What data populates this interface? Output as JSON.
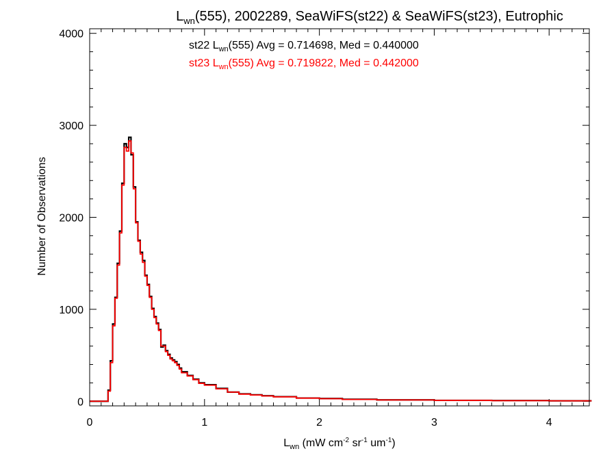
{
  "chart_data": {
    "type": "line",
    "title": {
      "prefix": "L",
      "sub": "wn",
      "suffix": "(555), 2002289, SeaWiFS(st22) & SeaWiFS(st23), Eutrophic"
    },
    "ylabel": "Number of Observations",
    "xlabel": {
      "main": "L",
      "sub": "wn",
      "units": [
        {
          "t": " (mW cm",
          "sup": false
        },
        {
          "t": "-2",
          "sup": true
        },
        {
          "t": " sr",
          "sup": false
        },
        {
          "t": "-1",
          "sup": true
        },
        {
          "t": " um",
          "sup": false
        },
        {
          "t": "-1",
          "sup": true
        },
        {
          "t": ")",
          "sup": false
        }
      ]
    },
    "xlim": [
      0,
      4.35
    ],
    "ylim": [
      -50,
      4050
    ],
    "xticks": [
      0,
      1,
      2,
      3,
      4
    ],
    "xtick_labels": [
      "0",
      "1",
      "2",
      "3",
      "4"
    ],
    "yticks": [
      0,
      1000,
      2000,
      3000,
      4000
    ],
    "ytick_labels": [
      "0",
      "1000",
      "2000",
      "3000",
      "4000"
    ],
    "grid": false,
    "legend": [
      {
        "prefix": "st22 L",
        "sub": "wn",
        "suffix": "(555) Avg = 0.714698, Med = 0.440000",
        "color": "#000000"
      },
      {
        "prefix": "st23 L",
        "sub": "wn",
        "suffix": "(555) Avg = 0.719822, Med = 0.442000",
        "color": "#ff0000"
      }
    ],
    "bin_width": 0.02,
    "series": [
      {
        "color": "#000000",
        "x": [
          0.0,
          0.16,
          0.18,
          0.2,
          0.22,
          0.24,
          0.26,
          0.28,
          0.3,
          0.32,
          0.34,
          0.36,
          0.38,
          0.4,
          0.42,
          0.44,
          0.46,
          0.48,
          0.5,
          0.52,
          0.54,
          0.56,
          0.58,
          0.6,
          0.62,
          0.64,
          0.66,
          0.68,
          0.7,
          0.72,
          0.74,
          0.76,
          0.78,
          0.8,
          0.85,
          0.9,
          0.95,
          1.0,
          1.1,
          1.2,
          1.3,
          1.4,
          1.5,
          1.6,
          1.8,
          2.0,
          2.2,
          2.5,
          3.0,
          3.5,
          4.0,
          4.35
        ],
        "y": [
          0,
          120,
          440,
          840,
          1130,
          1500,
          1850,
          2370,
          2800,
          2760,
          2870,
          2680,
          2330,
          1950,
          1750,
          1620,
          1530,
          1370,
          1270,
          1140,
          1010,
          920,
          850,
          780,
          590,
          610,
          550,
          510,
          470,
          450,
          430,
          400,
          360,
          320,
          280,
          240,
          200,
          180,
          140,
          100,
          80,
          70,
          60,
          50,
          35,
          30,
          22,
          15,
          10,
          8,
          5,
          5
        ]
      },
      {
        "color": "#ff0000",
        "x": [
          0.0,
          0.16,
          0.18,
          0.2,
          0.22,
          0.24,
          0.26,
          0.28,
          0.3,
          0.32,
          0.34,
          0.36,
          0.38,
          0.4,
          0.42,
          0.44,
          0.46,
          0.48,
          0.5,
          0.52,
          0.54,
          0.56,
          0.58,
          0.6,
          0.62,
          0.64,
          0.66,
          0.68,
          0.7,
          0.72,
          0.74,
          0.76,
          0.78,
          0.8,
          0.85,
          0.9,
          0.95,
          1.0,
          1.1,
          1.2,
          1.3,
          1.4,
          1.5,
          1.6,
          1.8,
          2.0,
          2.2,
          2.5,
          3.0,
          3.5,
          4.0,
          4.35
        ],
        "y": [
          0,
          110,
          420,
          820,
          1120,
          1480,
          1830,
          2350,
          2760,
          2720,
          2830,
          2700,
          2310,
          1940,
          1740,
          1600,
          1510,
          1360,
          1260,
          1130,
          1000,
          910,
          840,
          770,
          600,
          600,
          540,
          500,
          460,
          440,
          420,
          390,
          350,
          310,
          275,
          235,
          195,
          175,
          135,
          100,
          78,
          68,
          58,
          48,
          34,
          28,
          20,
          14,
          10,
          7,
          5,
          5
        ]
      }
    ]
  }
}
